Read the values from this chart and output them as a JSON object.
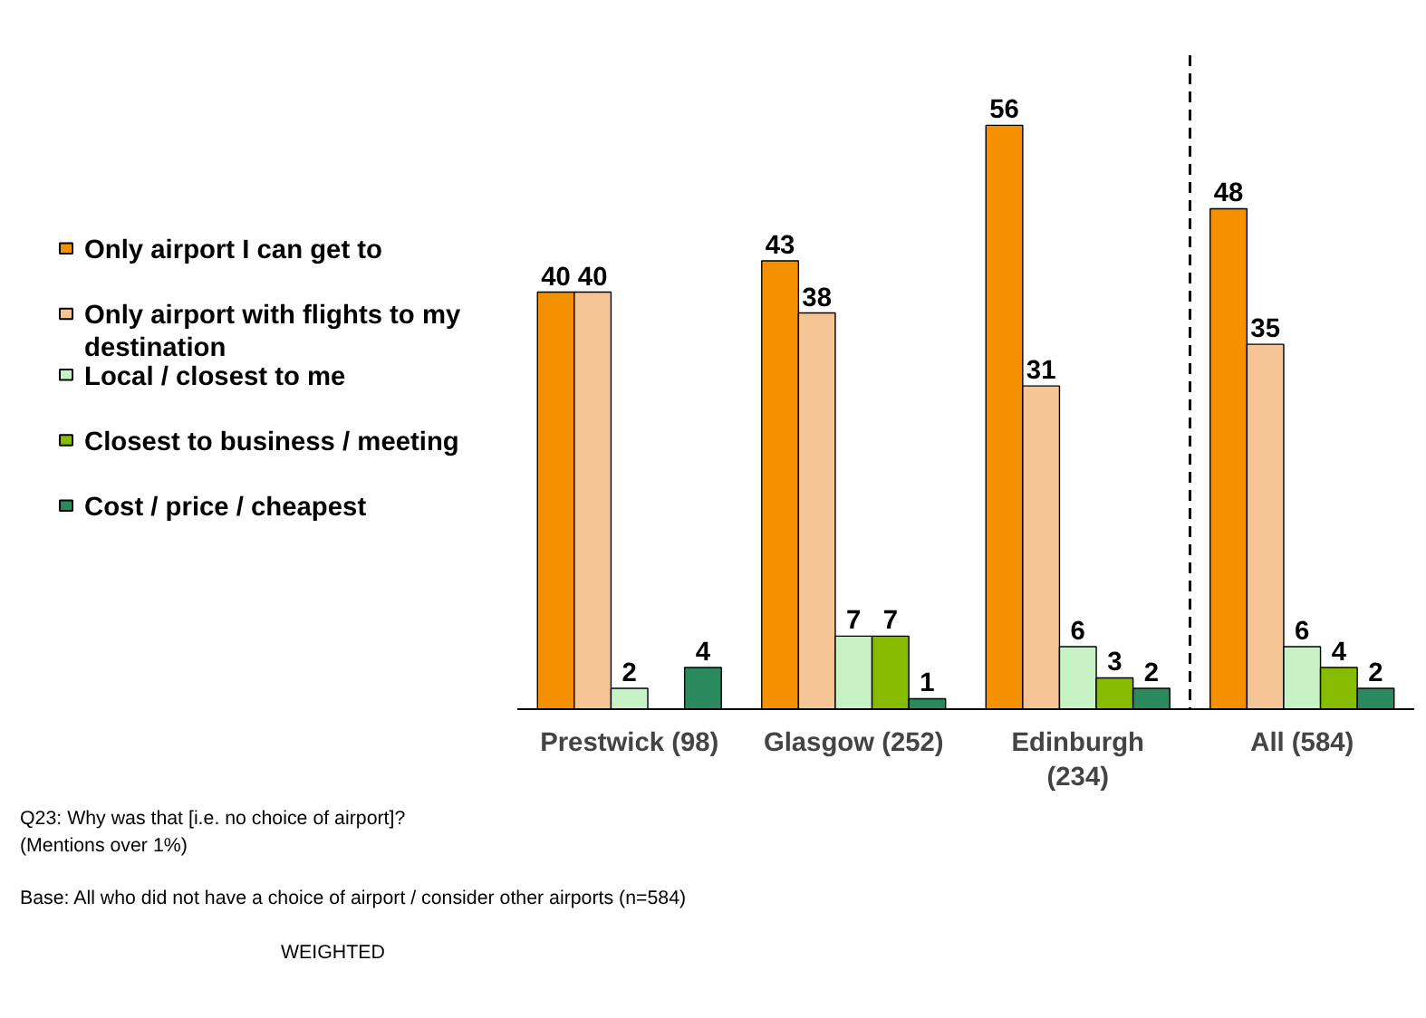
{
  "chart_data": {
    "type": "bar",
    "categories": [
      "Prestwick (98)",
      "Glasgow (252)",
      "Edinburgh\n(234)",
      "All (584)"
    ],
    "series": [
      {
        "name": "Only airport I can get to",
        "color": "#f59000",
        "values": [
          40,
          43,
          56,
          48
        ]
      },
      {
        "name": "Only airport with flights to my destination",
        "color": "#f5c596",
        "values": [
          40,
          38,
          31,
          35
        ]
      },
      {
        "name": "Local / closest to me",
        "color": "#c6f2c6",
        "values": [
          2,
          7,
          6,
          6
        ]
      },
      {
        "name": "Closest to business / meeting",
        "color": "#86bb00",
        "values": [
          null,
          7,
          3,
          4
        ]
      },
      {
        "name": "Cost / price / cheapest",
        "color": "#2a8a5e",
        "values": [
          4,
          1,
          2,
          2
        ]
      }
    ],
    "data_labels": true,
    "legend": "left",
    "grid": false,
    "annotations": [
      "Q23: Why was that [i.e. no choice of airport]?\n(Mentions over 1%)",
      "Base: All who did not have a choice of airport / consider other airports (n=584)",
      "WEIGHTED"
    ]
  }
}
